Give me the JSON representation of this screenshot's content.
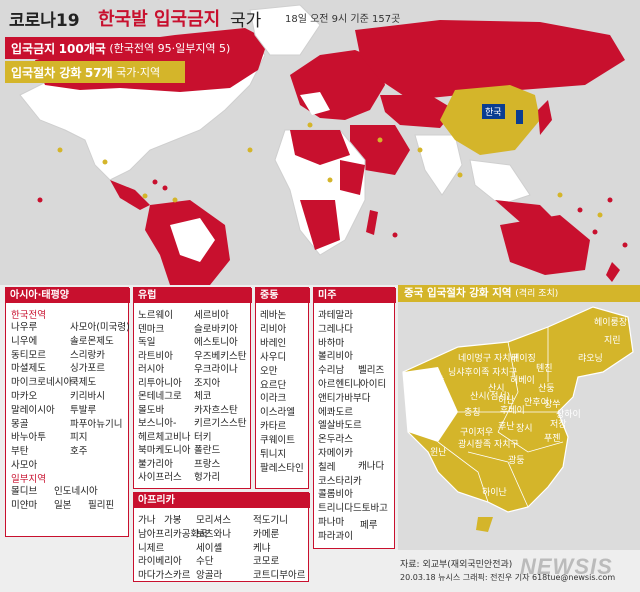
{
  "title": {
    "part1": "코로나19",
    "part2": "한국발 입국금지",
    "part3": "국가",
    "note": "18일 오전 9시 기준 157곳"
  },
  "legend": {
    "ban_label": "입국금지",
    "ban_count": "100개국",
    "ban_detail": "(한국전역 95·일부지역 5)",
    "strengthen_label": "입국절차 강화",
    "strengthen_count": "57개",
    "strengthen_detail": "국가·지역"
  },
  "colors": {
    "ban": "#c8102e",
    "strengthen": "#d4b52a",
    "neutral_land": "#ffffff",
    "korea": "#0a3d91"
  },
  "map": {
    "korea_label": "한국"
  },
  "asia": {
    "header": "아시아·태평양",
    "sub_all": "한국전역",
    "all_col1": [
      "나우루",
      "니우에",
      "동티모르",
      "마셜제도",
      "마이크로네시아",
      "마카오",
      "말레이시아",
      "몽골",
      "바누아투",
      "부탄",
      "사모아"
    ],
    "all_col2": [
      "사모아(미국령)",
      "솔로몬제도",
      "스리랑카",
      "싱가포르",
      "쿡제도",
      "키리바시",
      "투발루",
      "파푸아뉴기니",
      "피지",
      "호주"
    ],
    "sub_part": "일부지역",
    "part_items": [
      "몰디브",
      "인도네시아",
      "미얀마",
      "일본",
      "필리핀"
    ]
  },
  "europe": {
    "header": "유럽",
    "col1": [
      "노르웨이",
      "덴마크",
      "독일",
      "라트비아",
      "러시아",
      "리투아니아",
      "몬테네그로",
      "몰도바",
      "보스니아-",
      "헤르체고비나",
      "북마케도니아",
      "불가리아",
      "사이프러스"
    ],
    "col2": [
      "세르비아",
      "슬로바키아",
      "에스토니아",
      "우즈베키스탄",
      "우크라이나",
      "조지아",
      "체코",
      "카자흐스탄",
      "키르기스스탄",
      "터키",
      "폴란드",
      "프랑스",
      "헝가리"
    ]
  },
  "mideast": {
    "header": "중동",
    "items": [
      "레바논",
      "리비아",
      "바레인",
      "사우디",
      "오만",
      "요르단",
      "이라크",
      "이스라엘",
      "카타르",
      "쿠웨이트",
      "튀니지",
      "팔레스타인"
    ]
  },
  "americas": {
    "header": "미주",
    "col1": [
      "과테말라",
      "그레나다",
      "바하마",
      "볼리비아",
      "수리남",
      "아르헨티나",
      "앤티가바부다",
      "에콰도르",
      "엘살바도르",
      "온두라스",
      "자메이카",
      "칠레",
      "코스타리카",
      "콜롬비아",
      "트리니다드토바고",
      "파나마",
      "파라과이"
    ],
    "col2": [
      "벨리즈",
      "아이티",
      "캐나다",
      "페루"
    ]
  },
  "africa": {
    "header": "아프리카",
    "col1": [
      "가나",
      "남아프리카공화국",
      "니제르",
      "라이베리아",
      "마다가스카르"
    ],
    "col1b": [
      "가봉"
    ],
    "col2": [
      "모리셔스",
      "보츠와나",
      "세이셸",
      "수단",
      "앙골라"
    ],
    "col3": [
      "적도기니",
      "카메룬",
      "케냐",
      "코모로",
      "코트디부아르"
    ]
  },
  "china": {
    "header": "중국 입국절차 강화 지역",
    "header_note": "(격리 조치)",
    "regions": [
      "헤이룽장",
      "지린",
      "랴오닝",
      "베이징",
      "톈진",
      "네이멍구 자치구",
      "닝샤후이족 자치구",
      "산시",
      "허베이",
      "산둥",
      "장쑤",
      "상하이",
      "저장",
      "푸젠",
      "광둥",
      "하이난",
      "광시좡족 자치구",
      "구이저우",
      "충칭",
      "쓰촨",
      "후베이",
      "후난",
      "장시",
      "안후이",
      "허난",
      "산시(섬서)",
      "칭하이",
      "간쑤",
      "윈난"
    ],
    "city_labels": [
      "베이징",
      "톈진",
      "장쑤",
      "상하이"
    ]
  },
  "source": {
    "line1": "자료: 외교부(재외국민안전과)",
    "line2": "20.03.18 뉴시스 그래픽: 전진우 기자 618tue@newsis.com",
    "brand": "NEWSIS"
  }
}
